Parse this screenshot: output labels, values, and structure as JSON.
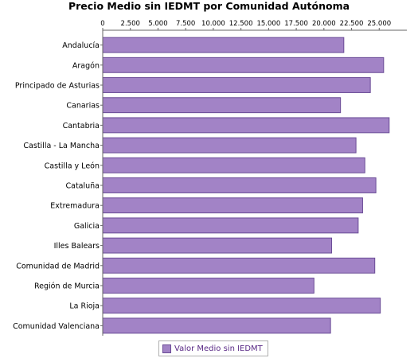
{
  "chart_data": {
    "type": "bar",
    "orientation": "horizontal",
    "title": "Precio Medio sin IEDMT por Comunidad Autónoma",
    "xlabel": "",
    "ylabel": "",
    "xlim": [
      0,
      27500
    ],
    "xticks": [
      0,
      2500,
      5000,
      7500,
      10000,
      12500,
      15000,
      17500,
      20000,
      22500,
      25000
    ],
    "xtick_labels": [
      "0",
      "2.500",
      "5.000",
      "7.500",
      "10.000",
      "12.500",
      "15.000",
      "17.500",
      "20.000",
      "22.500",
      "25.000"
    ],
    "x_axis_position": "top",
    "grid": false,
    "legend_position": "bottom",
    "color": "#a283c6",
    "categories": [
      "Andalucía",
      "Aragón",
      "Principado de Asturias",
      "Canarias",
      "Cantabria",
      "Castilla - La Mancha",
      "Castilla y León",
      "Cataluña",
      "Extremadura",
      "Galicia",
      "Illes Balears",
      "Comunidad de Madrid",
      "Región de Murcia",
      "La Rioja",
      "Comunidad Valenciana"
    ],
    "series": [
      {
        "name": "Valor Medio sin IEDMT",
        "values": [
          21800,
          25400,
          24200,
          21500,
          25900,
          22900,
          23700,
          24700,
          23500,
          23100,
          20700,
          24600,
          19100,
          25100,
          20600
        ]
      }
    ]
  }
}
